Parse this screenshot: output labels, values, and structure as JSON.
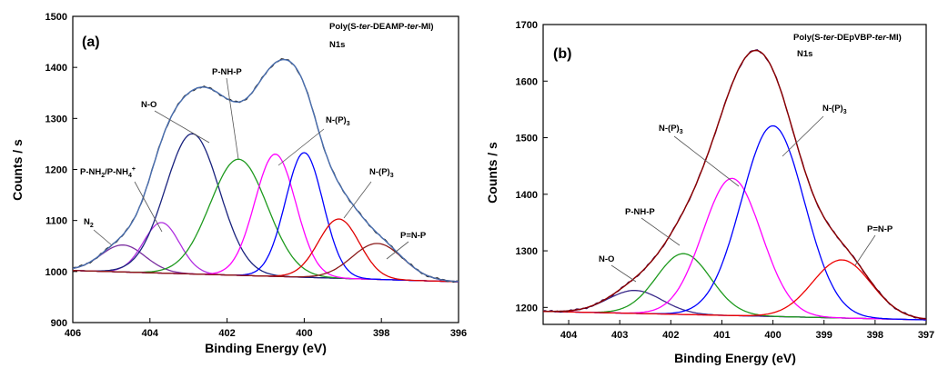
{
  "chart_data": [
    {
      "type": "line",
      "panel_label": "(a)",
      "title_parts": [
        "Poly(S-",
        "ter",
        "-DEAMP-",
        "ter",
        "-MI)"
      ],
      "subtitle": "N1s",
      "xlabel": "Binding Energy (eV)",
      "ylabel": "Counts / s",
      "xlim": [
        406,
        396
      ],
      "ylim": [
        900,
        1500
      ],
      "x_ticks": [
        "406",
        "404",
        "402",
        "400",
        "398",
        "396"
      ],
      "y_ticks": [
        "900",
        "1000",
        "1100",
        "1200",
        "1300",
        "1400",
        "1500"
      ],
      "baseline": {
        "start": 1002,
        "end": 980
      },
      "components": [
        {
          "color": "#7b2fa0",
          "center": 404.7,
          "height": 1052,
          "fwhm": 1.35
        },
        {
          "color": "#b030e0",
          "center": 403.7,
          "height": 1096,
          "fwhm": 1.1
        },
        {
          "color": "#1a237e",
          "center": 402.9,
          "height": 1270,
          "fwhm": 1.65
        },
        {
          "color": "#1e9a1e",
          "center": 401.7,
          "height": 1220,
          "fwhm": 1.75
        },
        {
          "color": "#ff00ff",
          "center": 400.75,
          "height": 1230,
          "fwhm": 1.25
        },
        {
          "color": "#0000ff",
          "center": 400.0,
          "height": 1233,
          "fwhm": 1.15
        },
        {
          "color": "#e00000",
          "center": 399.1,
          "height": 1103,
          "fwhm": 1.25
        },
        {
          "color": "#8b1a1a",
          "center": 398.1,
          "height": 1055,
          "fwhm": 1.55
        }
      ],
      "envelope_color": "#4a6fb0",
      "raw_color": "#222222",
      "baseline_color": "#8a8a00",
      "annotations": [
        {
          "segments": [
            [
              "N",
              ""
            ],
            [
              "2",
              "sub"
            ]
          ]
        },
        {
          "segments": [
            [
              "P-NH",
              ""
            ],
            [
              "2",
              "sub"
            ],
            [
              "/P-NH",
              ""
            ],
            [
              "4",
              "sub"
            ],
            [
              "+",
              "sup"
            ]
          ]
        },
        {
          "segments": [
            [
              "N-O",
              ""
            ]
          ]
        },
        {
          "segments": [
            [
              "P-NH-P",
              ""
            ]
          ]
        },
        {
          "segments": [
            [
              "N-(P)",
              ""
            ],
            [
              "3",
              "sub"
            ]
          ]
        },
        {
          "segments": [
            [
              "N-(P)",
              ""
            ],
            [
              "3",
              "sub"
            ]
          ]
        },
        {
          "segments": [
            [
              "P=N-P",
              ""
            ]
          ]
        }
      ]
    },
    {
      "type": "line",
      "panel_label": "(b)",
      "title_parts": [
        "Poly(S-",
        "ter",
        "-DEpVBP-",
        "ter",
        "-MI)"
      ],
      "subtitle": "N1s",
      "xlabel": "Binding Energy (eV)",
      "ylabel": "Counts / s",
      "xlim": [
        404.5,
        397
      ],
      "ylim": [
        1170,
        1700
      ],
      "x_ticks": [
        "404",
        "403",
        "402",
        "401",
        "400",
        "399",
        "398",
        "397"
      ],
      "y_ticks": [
        "1200",
        "1300",
        "1400",
        "1500",
        "1600",
        "1700"
      ],
      "baseline": {
        "start": 1193,
        "end": 1178
      },
      "components": [
        {
          "color": "#3a2a8a",
          "center": 402.7,
          "height": 1230,
          "fwhm": 1.25
        },
        {
          "color": "#1e9a1e",
          "center": 401.75,
          "height": 1295,
          "fwhm": 1.25
        },
        {
          "color": "#ff00ff",
          "center": 400.8,
          "height": 1428,
          "fwhm": 1.35
        },
        {
          "color": "#0000ff",
          "center": 400.0,
          "height": 1521,
          "fwhm": 1.45
        },
        {
          "color": "#ee0000",
          "center": 398.65,
          "height": 1284,
          "fwhm": 1.35
        }
      ],
      "envelope_color": "#8b0000",
      "raw_color": "#3a0050",
      "baseline_color": "#6a00d0",
      "annotations": [
        {
          "segments": [
            [
              "N-O",
              ""
            ]
          ]
        },
        {
          "segments": [
            [
              "P-NH-P",
              ""
            ]
          ]
        },
        {
          "segments": [
            [
              "N-(P)",
              ""
            ],
            [
              "3",
              "sub"
            ]
          ]
        },
        {
          "segments": [
            [
              "N-(P)",
              ""
            ],
            [
              "3",
              "sub"
            ]
          ]
        },
        {
          "segments": [
            [
              "P=N-P",
              ""
            ]
          ]
        }
      ]
    }
  ]
}
